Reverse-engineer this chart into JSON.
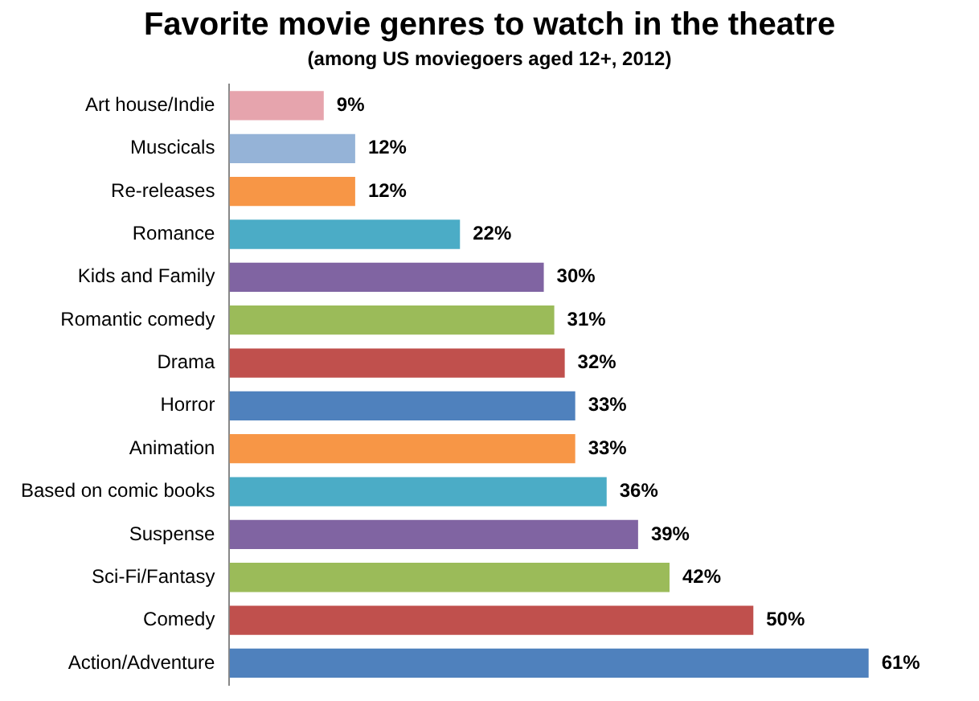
{
  "chart_data": {
    "type": "bar",
    "orientation": "horizontal",
    "title": "Favorite movie genres to watch in the theatre",
    "subtitle": "(among US moviegoers aged 12+, 2012)",
    "categories": [
      "Art house/Indie",
      "Muscicals",
      "Re-releases",
      "Romance",
      "Kids and Family",
      "Romantic comedy",
      "Drama",
      "Horror",
      "Animation",
      "Based on comic books",
      "Suspense",
      "Sci-Fi/Fantasy",
      "Comedy",
      "Action/Adventure"
    ],
    "values": [
      9,
      12,
      12,
      22,
      30,
      31,
      32,
      33,
      33,
      36,
      39,
      42,
      50,
      61
    ],
    "colors": [
      "#e6a4ad",
      "#95b3d7",
      "#f79646",
      "#4bacc6",
      "#8064a2",
      "#9bbb59",
      "#c0504d",
      "#4f81bd",
      "#f79646",
      "#4bacc6",
      "#8064a2",
      "#9bbb59",
      "#c0504d",
      "#4f81bd"
    ],
    "value_labels": [
      "9%",
      "12%",
      "12%",
      "22%",
      "30%",
      "31%",
      "32%",
      "33%",
      "33%",
      "36%",
      "39%",
      "42%",
      "50%",
      "61%"
    ],
    "tick_labels": "y",
    "grid": false,
    "legend": false
  }
}
